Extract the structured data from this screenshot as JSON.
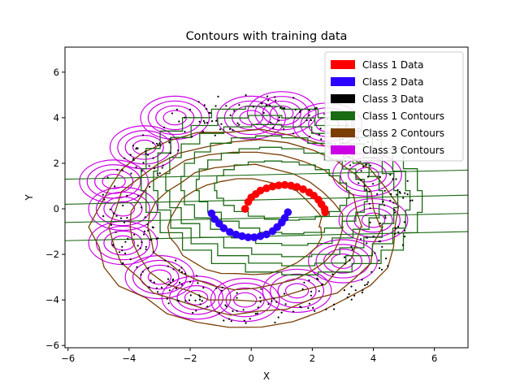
{
  "chart_data": {
    "type": "scatter",
    "title": "Contours with training data",
    "xlabel": "X",
    "ylabel": "Y",
    "xlim": [
      -6.1,
      7.1
    ],
    "ylim": [
      -6.1,
      7.1
    ],
    "xticks": [
      -6,
      -4,
      -2,
      0,
      2,
      4,
      6
    ],
    "yticks": [
      -6,
      -4,
      -2,
      0,
      2,
      4,
      6
    ],
    "xtick_labels": [
      "−6",
      "−4",
      "−2",
      "0",
      "2",
      "4",
      "6"
    ],
    "ytick_labels": [
      "−6",
      "−4",
      "−2",
      "0",
      "2",
      "4",
      "6"
    ],
    "grid": false,
    "legend_position": "top-right",
    "legend": [
      {
        "label": "Class 1 Data",
        "color": "#ff0000"
      },
      {
        "label": "Class 2 Data",
        "color": "#2b00ff"
      },
      {
        "label": "Class 3 Data",
        "color": "#000000"
      },
      {
        "label": "Class 1 Contours",
        "color": "#1a6b12"
      },
      {
        "label": "Class 2 Contours",
        "color": "#7b3f06"
      },
      {
        "label": "Class 3 Contours",
        "color": "#cc00e6"
      }
    ],
    "series": [
      {
        "name": "Class 1 Data",
        "color": "#ff0000",
        "shape": "upper arc of radius ~1.2 centred near (1.1, 0)",
        "points": [
          [
            -0.2,
            0.0
          ],
          [
            -0.1,
            0.3
          ],
          [
            0.0,
            0.5
          ],
          [
            0.15,
            0.65
          ],
          [
            0.3,
            0.8
          ],
          [
            0.5,
            0.9
          ],
          [
            0.7,
            0.98
          ],
          [
            0.9,
            1.03
          ],
          [
            1.1,
            1.05
          ],
          [
            1.3,
            1.02
          ],
          [
            1.5,
            0.96
          ],
          [
            1.7,
            0.86
          ],
          [
            1.9,
            0.72
          ],
          [
            2.05,
            0.58
          ],
          [
            2.2,
            0.4
          ],
          [
            2.3,
            0.2
          ],
          [
            2.4,
            0.0
          ],
          [
            2.42,
            -0.15
          ]
        ]
      },
      {
        "name": "Class 2 Data",
        "color": "#2b00ff",
        "shape": "lower arc of radius ~1.2 centred near (0, 0)",
        "points": [
          [
            -1.3,
            -0.2
          ],
          [
            -1.2,
            -0.45
          ],
          [
            -1.05,
            -0.65
          ],
          [
            -0.9,
            -0.85
          ],
          [
            -0.7,
            -1.02
          ],
          [
            -0.5,
            -1.13
          ],
          [
            -0.3,
            -1.2
          ],
          [
            -0.1,
            -1.25
          ],
          [
            0.1,
            -1.25
          ],
          [
            0.3,
            -1.2
          ],
          [
            0.5,
            -1.12
          ],
          [
            0.7,
            -0.98
          ],
          [
            0.85,
            -0.8
          ],
          [
            1.0,
            -0.6
          ],
          [
            1.1,
            -0.4
          ],
          [
            1.2,
            -0.15
          ]
        ]
      },
      {
        "name": "Class 3 Data",
        "color": "#000000",
        "shape": "noisy ring of radius ~4.3 around the origin",
        "ring_radius": 4.3,
        "ring_center": [
          0.2,
          0.0
        ]
      }
    ],
    "contours": {
      "class_1": {
        "color": "#1a6b12",
        "center": [
          1.0,
          0.8
        ],
        "radii_x": [
          2.2,
          2.8,
          3.3,
          3.8,
          4.2,
          4.6
        ],
        "radii_y": [
          1.3,
          1.9,
          2.4,
          2.9,
          3.3,
          3.7
        ]
      },
      "class_2": {
        "color": "#7b3f06",
        "center": [
          -0.2,
          -0.8
        ],
        "radii_x": [
          2.5,
          3.2,
          3.8,
          4.4,
          5.0
        ],
        "radii_y": [
          2.1,
          2.7,
          3.3,
          3.8,
          4.3
        ]
      },
      "class_3": {
        "color": "#cc00e6",
        "centers": [
          [
            -2.5,
            4.0
          ],
          [
            0.0,
            4.0
          ],
          [
            1.0,
            4.2
          ],
          [
            2.5,
            3.7
          ],
          [
            -3.5,
            2.7
          ],
          [
            -4.5,
            1.2
          ],
          [
            -4.2,
            0.0
          ],
          [
            -4.2,
            -1.5
          ],
          [
            -3.0,
            -3.0
          ],
          [
            -1.8,
            -3.9
          ],
          [
            -0.2,
            -4.0
          ],
          [
            1.5,
            -3.6
          ],
          [
            3.0,
            -2.3
          ],
          [
            4.0,
            -0.5
          ],
          [
            3.8,
            1.5
          ]
        ],
        "radii": [
          0.3,
          0.5,
          0.7,
          0.9
        ]
      }
    }
  }
}
